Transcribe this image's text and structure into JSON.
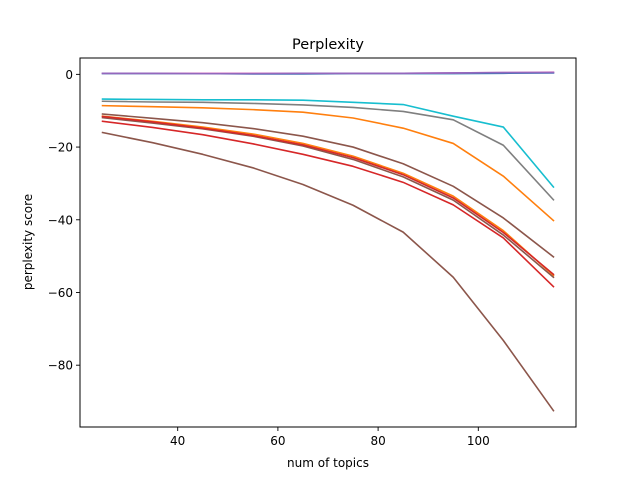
{
  "chart_data": {
    "type": "line",
    "title": "Perplexity",
    "xlabel": "num of topics",
    "ylabel": "perplexity score",
    "xlim": [
      20.5,
      119.5
    ],
    "ylim": [
      -97,
      4.5
    ],
    "xticks": [
      40,
      60,
      80,
      100
    ],
    "yticks": [
      0,
      -20,
      -40,
      -60,
      -80
    ],
    "ytick_labels": [
      "0",
      "−20",
      "−40",
      "−60",
      "−80"
    ],
    "grid": false,
    "x": [
      25,
      35,
      45,
      55,
      65,
      75,
      85,
      95,
      105,
      115
    ],
    "series": [
      {
        "color": "#17becf",
        "values": [
          -6.8,
          -6.9,
          -7.0,
          -7.0,
          -7.1,
          -7.7,
          -8.3,
          -11.5,
          -14.5,
          -31.0
        ]
      },
      {
        "color": "#7f7f7f",
        "values": [
          -7.4,
          -7.6,
          -7.7,
          -8.0,
          -8.4,
          -9.1,
          -10.2,
          -12.5,
          -19.5,
          -34.5
        ]
      },
      {
        "color": "#ff7f0e",
        "values": [
          -8.6,
          -8.9,
          -9.2,
          -9.7,
          -10.4,
          -12.0,
          -14.8,
          -19.0,
          -28.0,
          -40.2
        ]
      },
      {
        "color": "#8c564b",
        "values": [
          -10.9,
          -12.1,
          -13.3,
          -14.9,
          -17.0,
          -20.0,
          -24.6,
          -30.8,
          -39.5,
          -50.2
        ]
      },
      {
        "color": "#ff7f0e",
        "values": [
          -11.5,
          -12.9,
          -14.5,
          -16.4,
          -19.0,
          -22.5,
          -27.2,
          -33.5,
          -43.0,
          -55.3
        ]
      },
      {
        "color": "#8c564b",
        "values": [
          -11.9,
          -13.4,
          -15.0,
          -17.0,
          -19.7,
          -23.4,
          -28.2,
          -34.6,
          -44.2,
          -55.8
        ]
      },
      {
        "color": "#d62728",
        "values": [
          -11.6,
          -13.1,
          -14.8,
          -16.8,
          -19.4,
          -22.9,
          -27.6,
          -34.0,
          -43.5,
          -55.0
        ]
      },
      {
        "color": "#d62728",
        "values": [
          -12.9,
          -14.6,
          -16.6,
          -19.1,
          -22.0,
          -25.3,
          -29.7,
          -35.9,
          -45.0,
          -58.4
        ]
      },
      {
        "color": "#8c564b",
        "values": [
          -16.0,
          -18.8,
          -22.0,
          -25.7,
          -30.3,
          -36.0,
          -43.4,
          -55.8,
          -73.2,
          -92.5
        ]
      },
      {
        "color": "#1f77b4",
        "values": [
          0.2,
          0.2,
          0.2,
          0.1,
          0.1,
          0.2,
          0.2,
          0.2,
          0.3,
          0.4
        ]
      },
      {
        "color": "#e377c2",
        "values": [
          0.3,
          0.3,
          0.3,
          0.3,
          0.3,
          0.3,
          0.3,
          0.4,
          0.5,
          0.6
        ]
      },
      {
        "color": "#9467bd",
        "values": [
          0.3,
          0.3,
          0.2,
          0.2,
          0.3,
          0.3,
          0.3,
          0.4,
          0.5,
          0.5
        ]
      }
    ]
  }
}
